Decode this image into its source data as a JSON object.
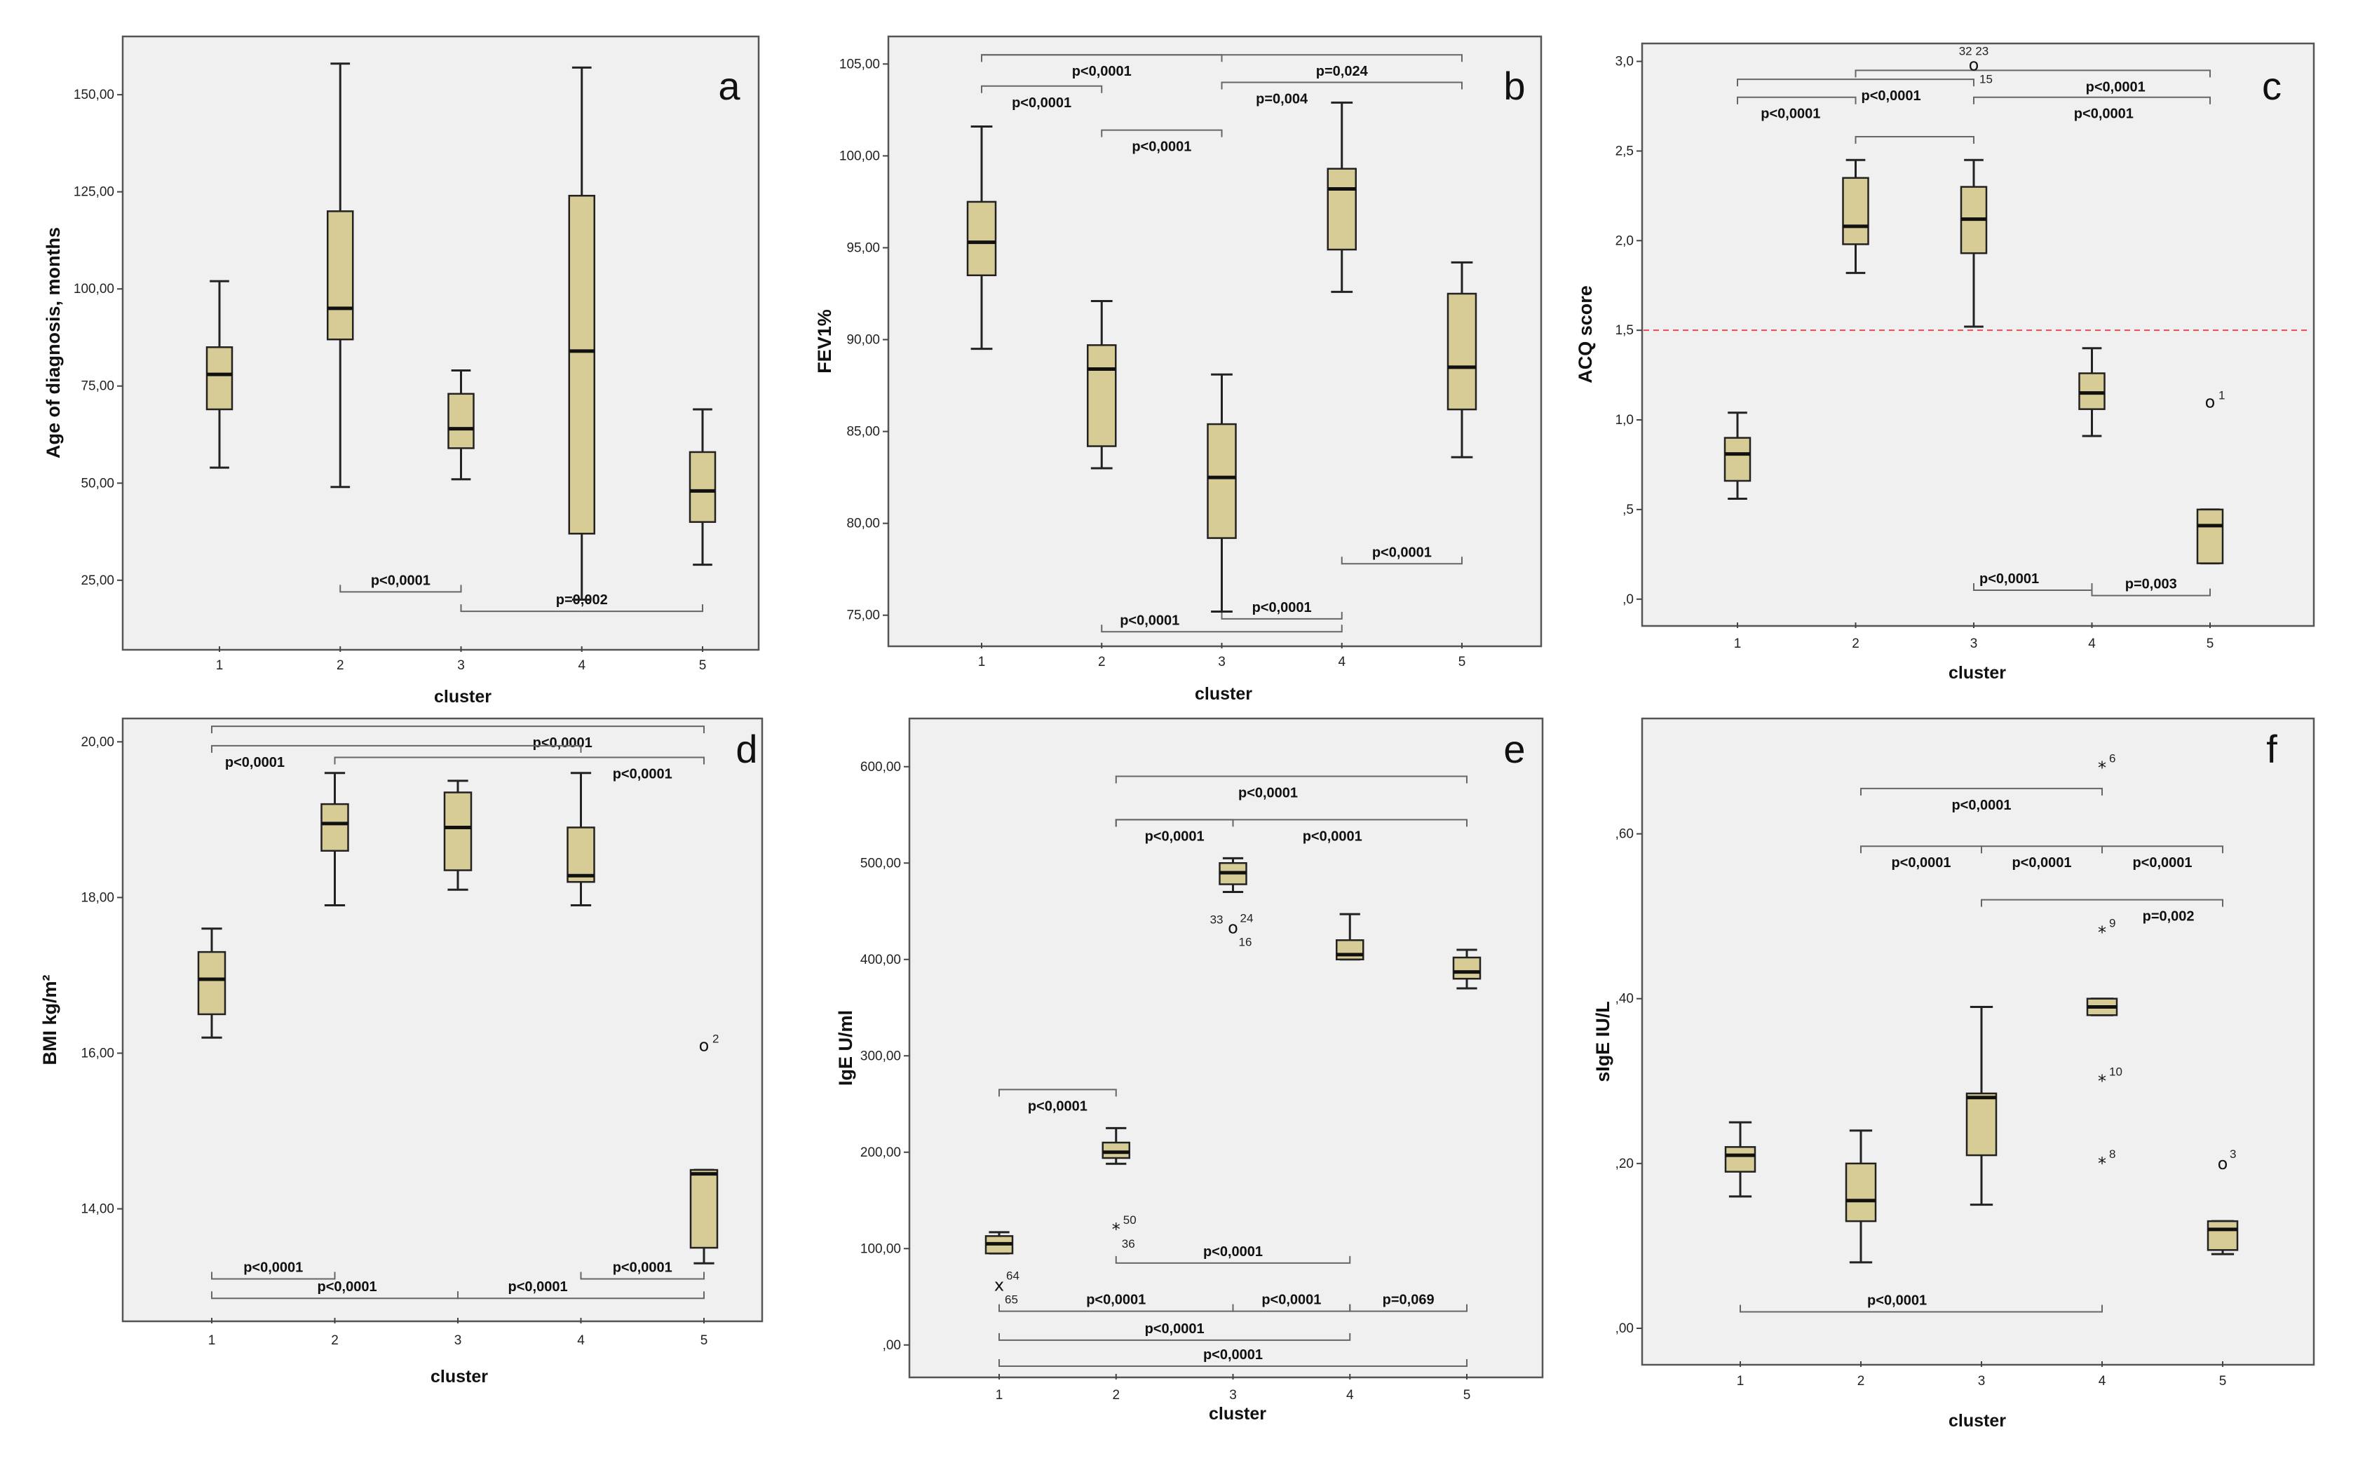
{
  "chart_data": [
    {
      "id": "a",
      "type": "boxplot",
      "panel_label": "a",
      "title": "",
      "xlabel": "cluster",
      "ylabel": "Age of diagnosis, months",
      "categories": [
        "1",
        "2",
        "3",
        "4",
        "5"
      ],
      "ylim": [
        8,
        165
      ],
      "yticks": [
        25,
        50,
        75,
        100,
        125,
        150
      ],
      "ytick_labels": [
        "25,00",
        "50,00",
        "75,00",
        "100,00",
        "125,00",
        "150,00"
      ],
      "boxes": [
        {
          "min": 54,
          "q1": 69,
          "median": 78,
          "q3": 85,
          "max": 102
        },
        {
          "min": 49,
          "q1": 87,
          "median": 95,
          "q3": 120,
          "max": 158
        },
        {
          "min": 51,
          "q1": 59,
          "median": 64,
          "q3": 73,
          "max": 79
        },
        {
          "min": 20,
          "q1": 37,
          "median": 84,
          "q3": 124,
          "max": 157
        },
        {
          "min": 29,
          "q1": 40,
          "median": 48,
          "q3": 58,
          "max": 69
        }
      ],
      "outliers": [],
      "comparisons": [
        {
          "from": 2,
          "to": 3,
          "y": 22,
          "label": "p<0,0001",
          "lpos": "above"
        },
        {
          "from": 3,
          "to": 5,
          "y": 17,
          "label": "p=0,002",
          "lpos": "above"
        }
      ]
    },
    {
      "id": "b",
      "type": "boxplot",
      "panel_label": "b",
      "title": "",
      "xlabel": "cluster",
      "ylabel": "FEV1%",
      "categories": [
        "1",
        "2",
        "3",
        "4",
        "5"
      ],
      "ylim": [
        73.5,
        106.5
      ],
      "yticks": [
        75,
        80,
        85,
        90,
        95,
        100,
        105
      ],
      "ytick_labels": [
        "75,00",
        "80,00",
        "85,00",
        "90,00",
        "95,00",
        "100,00",
        "105,00"
      ],
      "boxes": [
        {
          "min": 89.5,
          "q1": 93.5,
          "median": 95.3,
          "q3": 97.5,
          "max": 101.6
        },
        {
          "min": 83.0,
          "q1": 84.2,
          "median": 88.4,
          "q3": 89.7,
          "max": 92.1
        },
        {
          "min": 75.2,
          "q1": 79.2,
          "median": 82.5,
          "q3": 85.4,
          "max": 88.1
        },
        {
          "min": 92.6,
          "q1": 94.9,
          "median": 98.2,
          "q3": 99.3,
          "max": 102.9
        },
        {
          "min": 83.6,
          "q1": 86.2,
          "median": 88.5,
          "q3": 92.5,
          "max": 94.2
        }
      ],
      "outliers": [],
      "comparisons": [
        {
          "from": 1,
          "to": 5,
          "y": 105.5,
          "label": "p=0,024",
          "lpos": "below",
          "lx": 4
        },
        {
          "from": 1,
          "to": 3,
          "y": 105.5,
          "label": "p<0,0001",
          "lpos": "below",
          "lx": 2
        },
        {
          "from": 1,
          "to": 2,
          "y": 103.8,
          "label": "p<0,0001",
          "lpos": "below"
        },
        {
          "from": 3,
          "to": 5,
          "y": 104.0,
          "label": "p=0,004",
          "lpos": "below",
          "lx": 3.5
        },
        {
          "from": 2,
          "to": 3,
          "y": 101.4,
          "label": "p<0,0001",
          "lpos": "below"
        },
        {
          "from": 4,
          "to": 5,
          "y": 77.8,
          "label": "p<0,0001",
          "lpos": "above"
        },
        {
          "from": 3,
          "to": 4,
          "y": 74.8,
          "label": "p<0,0001",
          "lpos": "above"
        },
        {
          "from": 2,
          "to": 4,
          "y": 74.1,
          "label": "p<0,0001",
          "lpos": "above",
          "lx": 2.4
        }
      ]
    },
    {
      "id": "c",
      "type": "boxplot",
      "panel_label": "c",
      "title": "",
      "xlabel": "cluster",
      "ylabel": "ACQ score",
      "categories": [
        "1",
        "2",
        "3",
        "4",
        "5"
      ],
      "ylim": [
        -0.13,
        3.1
      ],
      "yticks": [
        0,
        0.5,
        1.0,
        1.5,
        2.0,
        2.5,
        3.0
      ],
      "ytick_labels": [
        ",0",
        ",5",
        "1,0",
        "1,5",
        "2,0",
        "2,5",
        "3,0"
      ],
      "reference_line": 1.5,
      "boxes": [
        {
          "min": 0.56,
          "q1": 0.66,
          "median": 0.81,
          "q3": 0.9,
          "max": 1.04
        },
        {
          "min": 1.82,
          "q1": 1.98,
          "median": 2.08,
          "q3": 2.35,
          "max": 2.45
        },
        {
          "min": 1.52,
          "q1": 1.93,
          "median": 2.12,
          "q3": 2.3,
          "max": 2.45
        },
        {
          "min": 0.91,
          "q1": 1.06,
          "median": 1.15,
          "q3": 1.26,
          "max": 1.4
        },
        {
          "min": 0.2,
          "q1": 0.2,
          "median": 0.41,
          "q3": 0.5,
          "max": 0.5
        }
      ],
      "outliers": [
        {
          "cluster": 3,
          "value": 2.98,
          "marker": "o",
          "label": "32  23",
          "lpos": "top"
        },
        {
          "cluster": 3,
          "value": 2.98,
          "marker": "",
          "label": "15",
          "lpos": "belowright"
        },
        {
          "cluster": 5,
          "value": 1.1,
          "marker": "o",
          "label": "1",
          "lpos": "right"
        }
      ],
      "comparisons": [
        {
          "from": 2,
          "to": 5,
          "y": 2.95,
          "label": "p<0,0001",
          "lpos": "below",
          "lx": 4.2
        },
        {
          "from": 1,
          "to": 3,
          "y": 2.9,
          "label": "p<0,0001",
          "lpos": "below",
          "lx": 2.3
        },
        {
          "from": 1,
          "to": 2,
          "y": 2.8,
          "label": "p<0,0001",
          "lpos": "below",
          "lx": 1.45
        },
        {
          "from": 3,
          "to": 5,
          "y": 2.8,
          "label": "p<0,0001",
          "lpos": "below",
          "lx": 4.1
        },
        {
          "from": 2,
          "to": 3,
          "y": 2.58,
          "label": "",
          "lpos": "below"
        },
        {
          "from": 3,
          "to": 4,
          "y": 0.05,
          "label": "p<0,0001",
          "lpos": "above",
          "lx": 3.3
        },
        {
          "from": 4,
          "to": 5,
          "y": 0.02,
          "label": "p=0,003",
          "lpos": "above"
        }
      ]
    },
    {
      "id": "d",
      "type": "boxplot",
      "panel_label": "d",
      "title": "",
      "xlabel": "cluster",
      "ylabel": "BMI  kg/m²",
      "categories": [
        "1",
        "2",
        "3",
        "4",
        "5"
      ],
      "ylim": [
        12.6,
        20.3
      ],
      "yticks": [
        14,
        16,
        18,
        20
      ],
      "ytick_labels": [
        "14,00",
        "16,00",
        "18,00",
        "20,00"
      ],
      "boxes": [
        {
          "min": 16.2,
          "q1": 16.5,
          "median": 16.95,
          "q3": 17.3,
          "max": 17.6
        },
        {
          "min": 17.9,
          "q1": 18.6,
          "median": 18.95,
          "q3": 19.2,
          "max": 19.6
        },
        {
          "min": 18.1,
          "q1": 18.35,
          "median": 18.9,
          "q3": 19.35,
          "max": 19.5
        },
        {
          "min": 17.9,
          "q1": 18.2,
          "median": 18.28,
          "q3": 18.9,
          "max": 19.6
        },
        {
          "min": 13.3,
          "q1": 13.5,
          "median": 14.45,
          "q3": 14.5,
          "max": 14.5
        }
      ],
      "outliers": [
        {
          "cluster": 5,
          "value": 16.1,
          "marker": "o",
          "label": "2",
          "lpos": "right"
        }
      ],
      "comparisons": [
        {
          "from": 1,
          "to": 5,
          "y": 20.2,
          "label": "p<0,0001",
          "lpos": "below",
          "lx": 3.85
        },
        {
          "from": 1,
          "to": 4,
          "y": 19.95,
          "label": "p<0,0001",
          "lpos": "below",
          "lx": 1.35
        },
        {
          "from": 2,
          "to": 5,
          "y": 19.8,
          "label": "p<0,0001",
          "lpos": "below",
          "lx": 4.5
        },
        {
          "from": 1,
          "to": 2,
          "y": 13.1,
          "label": "p<0,0001",
          "lpos": "above"
        },
        {
          "from": 4,
          "to": 5,
          "y": 13.1,
          "label": "p<0,0001",
          "lpos": "above"
        },
        {
          "from": 1,
          "to": 3,
          "y": 12.85,
          "label": "p<0,0001",
          "lpos": "above",
          "lx": 2.1
        },
        {
          "from": 3,
          "to": 5,
          "y": 12.85,
          "label": "p<0,0001",
          "lpos": "above",
          "lx": 3.65
        }
      ]
    },
    {
      "id": "e",
      "type": "boxplot",
      "panel_label": "e",
      "title": "",
      "xlabel": "cluster",
      "ylabel": "IgE U/ml",
      "categories": [
        "1",
        "2",
        "3",
        "4",
        "5"
      ],
      "ylim": [
        -30,
        650
      ],
      "yticks": [
        0,
        100,
        200,
        300,
        400,
        500,
        600
      ],
      "ytick_labels": [
        ",00",
        "100,00",
        "200,00",
        "300,00",
        "400,00",
        "500,00",
        "600,00"
      ],
      "boxes": [
        {
          "min": 95,
          "q1": 95,
          "median": 105,
          "q3": 113,
          "max": 117
        },
        {
          "min": 188,
          "q1": 194,
          "median": 200,
          "q3": 210,
          "max": 225
        },
        {
          "min": 470,
          "q1": 478,
          "median": 490,
          "q3": 500,
          "max": 505
        },
        {
          "min": 400,
          "q1": 400,
          "median": 405,
          "q3": 420,
          "max": 447
        },
        {
          "min": 370,
          "q1": 380,
          "median": 387,
          "q3": 402,
          "max": 410
        }
      ],
      "outliers": [
        {
          "cluster": 1,
          "value": 62,
          "marker": "x",
          "label": "64",
          "lpos": "topright"
        },
        {
          "cluster": 1,
          "value": 62,
          "marker": "",
          "label": "65",
          "lpos": "belowright"
        },
        {
          "cluster": 2,
          "value": 120,
          "marker": "*",
          "label": "50",
          "lpos": "topright"
        },
        {
          "cluster": 2,
          "value": 120,
          "marker": "",
          "label": "36",
          "lpos": "belowright"
        },
        {
          "cluster": 3,
          "value": 433,
          "marker": "o",
          "label": "33",
          "lpos": "left"
        },
        {
          "cluster": 3,
          "value": 433,
          "marker": "",
          "label": "24",
          "lpos": "topright"
        },
        {
          "cluster": 3,
          "value": 433,
          "marker": "",
          "label": "16",
          "lpos": "belowright"
        }
      ],
      "comparisons": [
        {
          "from": 2,
          "to": 5,
          "y": 590,
          "label": "p<0,0001",
          "lpos": "below",
          "lx": 3.3
        },
        {
          "from": 2,
          "to": 5,
          "y": 545,
          "label": "p<0,0001",
          "lpos": "below",
          "lx": 3.85
        },
        {
          "from": 2,
          "to": 3,
          "y": 545,
          "label": "p<0,0001",
          "lpos": "below",
          "lx": 2.5
        },
        {
          "from": 1,
          "to": 2,
          "y": 265,
          "label": "p<0,0001",
          "lpos": "below"
        },
        {
          "from": 2,
          "to": 4,
          "y": 85,
          "label": "p<0,0001",
          "lpos": "above"
        },
        {
          "from": 1,
          "to": 3,
          "y": 35,
          "label": "p<0,0001",
          "lpos": "above"
        },
        {
          "from": 3,
          "to": 4,
          "y": 35,
          "label": "p<0,0001",
          "lpos": "above"
        },
        {
          "from": 4,
          "to": 5,
          "y": 35,
          "label": "p=0,069",
          "lpos": "above"
        },
        {
          "from": 1,
          "to": 4,
          "y": 5,
          "label": "p<0,0001",
          "lpos": "above"
        },
        {
          "from": 1,
          "to": 5,
          "y": -22,
          "label": "p<0,0001",
          "lpos": "above"
        }
      ]
    },
    {
      "id": "f",
      "type": "boxplot",
      "panel_label": "f",
      "title": "",
      "xlabel": "cluster",
      "ylabel": "sIgE IU/L",
      "categories": [
        "1",
        "2",
        "3",
        "4",
        "5"
      ],
      "ylim": [
        -0.04,
        0.74
      ],
      "yticks": [
        0,
        0.2,
        0.4,
        0.6
      ],
      "ytick_labels": [
        ",00",
        ",20",
        ",40",
        ",60"
      ],
      "boxes": [
        {
          "min": 0.16,
          "q1": 0.19,
          "median": 0.21,
          "q3": 0.22,
          "max": 0.25
        },
        {
          "min": 0.08,
          "q1": 0.13,
          "median": 0.155,
          "q3": 0.2,
          "max": 0.24
        },
        {
          "min": 0.15,
          "q1": 0.21,
          "median": 0.28,
          "q3": 0.285,
          "max": 0.39
        },
        {
          "min": 0.38,
          "q1": 0.38,
          "median": 0.39,
          "q3": 0.4,
          "max": 0.4
        },
        {
          "min": 0.09,
          "q1": 0.095,
          "median": 0.12,
          "q3": 0.13,
          "max": 0.13
        }
      ],
      "outliers": [
        {
          "cluster": 4,
          "value": 0.68,
          "marker": "*",
          "label": "6",
          "lpos": "topright"
        },
        {
          "cluster": 4,
          "value": 0.48,
          "marker": "*",
          "label": "9",
          "lpos": "topright"
        },
        {
          "cluster": 4,
          "value": 0.3,
          "marker": "*",
          "label": "10",
          "lpos": "topright"
        },
        {
          "cluster": 4,
          "value": 0.2,
          "marker": "*",
          "label": "8",
          "lpos": "topright"
        },
        {
          "cluster": 5,
          "value": 0.2,
          "marker": "o",
          "label": "3",
          "lpos": "topright"
        }
      ],
      "comparisons": [
        {
          "from": 2,
          "to": 4,
          "y": 0.655,
          "label": "p<0,0001",
          "lpos": "below"
        },
        {
          "from": 2,
          "to": 3,
          "y": 0.585,
          "label": "p<0,0001",
          "lpos": "below"
        },
        {
          "from": 3,
          "to": 4,
          "y": 0.585,
          "label": "p<0,0001",
          "lpos": "below"
        },
        {
          "from": 4,
          "to": 5,
          "y": 0.585,
          "label": "p<0,0001",
          "lpos": "below"
        },
        {
          "from": 3,
          "to": 5,
          "y": 0.52,
          "label": "p=0,002",
          "lpos": "below",
          "lx": 4.55
        },
        {
          "from": 1,
          "to": 4,
          "y": 0.02,
          "label": "p<0,0001",
          "lpos": "above",
          "lx": 2.3
        }
      ]
    }
  ]
}
